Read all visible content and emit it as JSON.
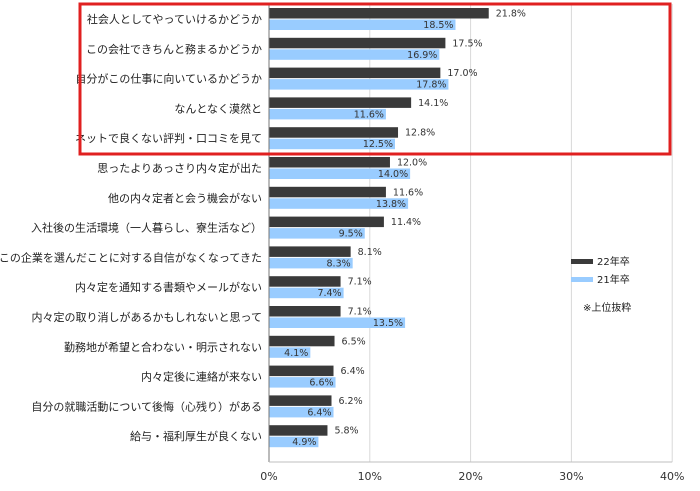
{
  "chart_data": {
    "type": "bar",
    "orientation": "horizontal",
    "categories": [
      "社会人としてやっていけるかどうか",
      "この会社できちんと務まるかどうか",
      "自分がこの仕事に向いているかどうか",
      "なんとなく漠然と",
      "ネットで良くない評判・口コミを見て",
      "思ったよりあっさり内々定が出た",
      "他の内々定者と会う機会がない",
      "入社後の生活環境（一人暮らし、寮生活など）",
      "この企業を選んだことに対する自信がなくなってきた",
      "内々定を通知する書類やメールがない",
      "内々定の取り消しがあるかもしれないと思って",
      "勤務地が希望と合わない・明示されない",
      "内々定後に連絡が来ない",
      "自分の就職活動について後悔（心残り）がある",
      "給与・福利厚生が良くない"
    ],
    "series": [
      {
        "name": "22年卒",
        "color": "#3a3a3a",
        "values": [
          21.8,
          17.5,
          17.0,
          14.1,
          12.8,
          12.0,
          11.6,
          11.4,
          8.1,
          7.1,
          7.1,
          6.5,
          6.4,
          6.2,
          5.8
        ],
        "labels": [
          "21.8%",
          "17.5%",
          "17.0%",
          "14.1%",
          "12.8%",
          "12.0%",
          "11.6%",
          "11.4%",
          "8.1%",
          "7.1%",
          "7.1%",
          "6.5%",
          "6.4%",
          "6.2%",
          "5.8%"
        ]
      },
      {
        "name": "21年卒",
        "color": "#99ccff",
        "values": [
          18.5,
          16.9,
          17.8,
          11.6,
          12.5,
          14.0,
          13.8,
          9.5,
          8.3,
          7.4,
          13.5,
          4.1,
          6.6,
          6.4,
          4.9
        ],
        "labels": [
          "18.5%",
          "16.9%",
          "17.8%",
          "11.6%",
          "12.5%",
          "14.0%",
          "13.8%",
          "9.5%",
          "8.3%",
          "7.4%",
          "13.5%",
          "4.1%",
          "6.6%",
          "6.4%",
          "4.9%"
        ]
      }
    ],
    "x_ticks": [
      "0%",
      "10%",
      "20%",
      "30%",
      "40%"
    ],
    "x_tick_values": [
      0,
      10,
      20,
      30,
      40
    ],
    "xlim": [
      0,
      40
    ],
    "grid": true,
    "legend_placement": "right",
    "note": "※上位抜粋",
    "highlight_box_color": "#e02020"
  }
}
